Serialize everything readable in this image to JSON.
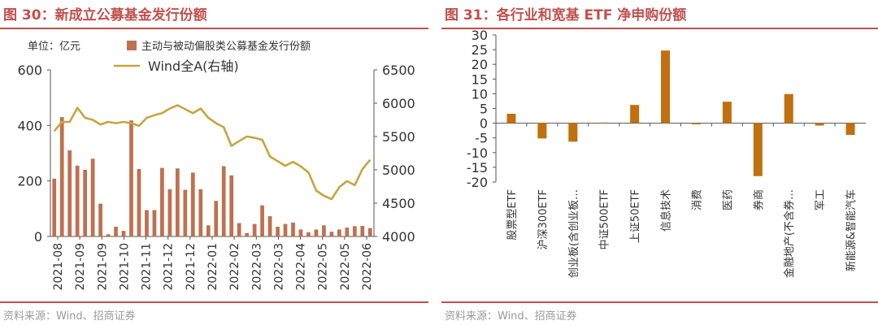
{
  "left": {
    "title": "图 30：新成立公募基金发行份额",
    "unit": "单位：亿元",
    "source": "资料来源：Wind、招商证券",
    "chart_data": {
      "type": "bar+line",
      "colors": {
        "bar": "#C0704F",
        "line": "#C8A43C",
        "title": "#C0504D"
      },
      "ylim_left": [
        0,
        600
      ],
      "yticks_left": [
        0,
        200,
        400,
        600
      ],
      "ylim_right": [
        4000,
        6500
      ],
      "yticks_right": [
        4000,
        4500,
        5000,
        5500,
        6000,
        6500
      ],
      "xticks": [
        "2021-08",
        "2021-09",
        "2021-09",
        "2021-10",
        "2021-11",
        "2021-12",
        "2021-12",
        "2022-01",
        "2022-02",
        "2022-03",
        "2022-03",
        "2022-04",
        "2022-05",
        "2022-05",
        "2022-06"
      ],
      "series": [
        {
          "name": "主动与被动偏股类公募基金发行份额",
          "type": "bar",
          "axis": "left",
          "values": [
            208,
            430,
            310,
            255,
            240,
            280,
            118,
            8,
            35,
            20,
            418,
            243,
            95,
            95,
            247,
            170,
            245,
            168,
            230,
            170,
            40,
            128,
            253,
            220,
            48,
            12,
            45,
            112,
            73,
            35,
            45,
            50,
            25,
            15,
            25,
            40,
            17,
            25,
            32,
            37,
            38,
            30
          ]
        },
        {
          "name": "Wind全A(右轴)",
          "type": "line",
          "axis": "right",
          "values": [
            5580,
            5720,
            5720,
            5930,
            5780,
            5750,
            5680,
            5720,
            5700,
            5720,
            5700,
            5660,
            5780,
            5820,
            5850,
            5920,
            5970,
            5910,
            5850,
            5920,
            5780,
            5700,
            5640,
            5360,
            5430,
            5500,
            5480,
            5450,
            5200,
            5130,
            5060,
            5120,
            5050,
            4960,
            4690,
            4610,
            4560,
            4740,
            4830,
            4770,
            5010,
            5150
          ]
        }
      ]
    }
  },
  "right": {
    "title": "图 31：各行业和宽基 ETF 净申购份额",
    "source": "资料来源：Wind、招商证券",
    "chart_data": {
      "type": "bar",
      "colors": {
        "bar": "#C0700F",
        "title": "#C0504D"
      },
      "ylim": [
        -20,
        30
      ],
      "yticks": [
        -20,
        -15,
        -10,
        -5,
        0,
        5,
        10,
        15,
        20,
        25,
        30
      ],
      "categories": [
        "股票型ETF",
        "沪深300ETF",
        "创业板(含创业板…",
        "中证500ETF",
        "上证50ETF",
        "信息技术",
        "消费",
        "医药",
        "券商",
        "金融地产(不含券…",
        "军工",
        "新能源&智能汽车"
      ],
      "values": [
        3.2,
        -5.2,
        -6.3,
        0.2,
        6.2,
        24.7,
        -0.4,
        7.3,
        -18.0,
        9.9,
        -0.8,
        -4.0
      ]
    }
  }
}
